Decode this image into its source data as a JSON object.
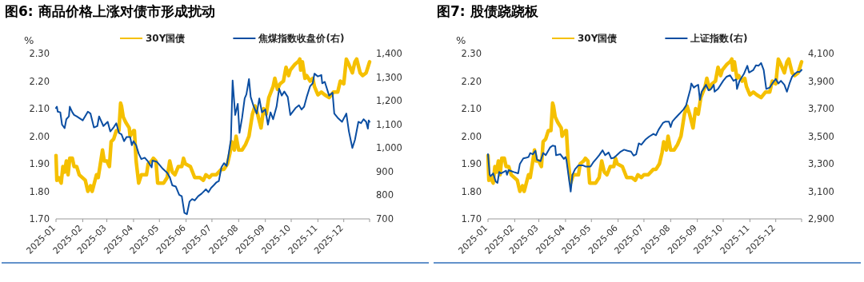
{
  "chart_data": [
    {
      "type": "line",
      "title": "图6: 商品价格上涨对债市形成扰动",
      "ylabel": "%",
      "legend": "top",
      "xlim": [
        "2025-01-01",
        "2025-12-31"
      ],
      "xticks": [
        "2025-01",
        "2025-02",
        "2025-03",
        "2025-04",
        "2025-05",
        "2025-06",
        "2025-07",
        "2025-08",
        "2025-09",
        "2025-10",
        "2025-11",
        "2025-12"
      ],
      "ylim": [
        1.7,
        2.3
      ],
      "yticks": [
        {
          "value": 1.7,
          "label": "1.70"
        },
        {
          "value": 1.8,
          "label": "1.80"
        },
        {
          "value": 1.9,
          "label": "1.90"
        },
        {
          "value": 2.0,
          "label": "2.00"
        },
        {
          "value": 2.1,
          "label": "2.10"
        },
        {
          "value": 2.2,
          "label": "2.20"
        },
        {
          "value": 2.3,
          "label": "2.30"
        }
      ],
      "y2lim": [
        700,
        1400
      ],
      "y2ticks": [
        700,
        800,
        900,
        {
          "value": 1000,
          "label": "1,000"
        },
        {
          "value": 1100,
          "label": "1,100"
        },
        {
          "value": 1200,
          "label": "1,200"
        },
        {
          "value": 1300,
          "label": "1,300"
        },
        {
          "value": 1400,
          "label": "1,400"
        }
      ],
      "series": [
        {
          "name": "30Y国债",
          "color": "#f5c000",
          "x": [
            "2025-01-01",
            "2025-01-02",
            "2025-01-04",
            "2025-01-07",
            "2025-01-09",
            "2025-01-11",
            "2025-01-13",
            "2025-01-15",
            "2025-01-17",
            "2025-01-20",
            "2025-01-22",
            "2025-01-25",
            "2025-01-28",
            "2025-02-04",
            "2025-02-07",
            "2025-02-10",
            "2025-02-12",
            "2025-02-17",
            "2025-02-19",
            "2025-02-22",
            "2025-02-24",
            "2025-02-26",
            "2025-03-01",
            "2025-03-04",
            "2025-03-06",
            "2025-03-09",
            "2025-03-12",
            "2025-03-15",
            "2025-03-17",
            "2025-03-18",
            "2025-03-20",
            "2025-03-23",
            "2025-03-27",
            "2025-03-28",
            "2025-04-01",
            "2025-04-02",
            "2025-04-04",
            "2025-04-07",
            "2025-04-10",
            "2025-04-16",
            "2025-04-18",
            "2025-04-22",
            "2025-04-24",
            "2025-04-27",
            "2025-04-29",
            "2025-05-06",
            "2025-05-10",
            "2025-05-13",
            "2025-05-16",
            "2025-05-19",
            "2025-05-23",
            "2025-05-27",
            "2025-05-29",
            "2025-05-31",
            "2025-06-06",
            "2025-06-11",
            "2025-06-17",
            "2025-06-21",
            "2025-06-24",
            "2025-06-28",
            "2025-07-01",
            "2025-07-06",
            "2025-07-12",
            "2025-07-15",
            "2025-07-19",
            "2025-07-22",
            "2025-07-24",
            "2025-07-27",
            "2025-07-29",
            "2025-08-01",
            "2025-08-05",
            "2025-08-09",
            "2025-08-13",
            "2025-08-17",
            "2025-08-20",
            "2025-08-23",
            "2025-08-27",
            "2025-08-30",
            "2025-09-02",
            "2025-09-05",
            "2025-09-10",
            "2025-09-12",
            "2025-09-15",
            "2025-09-18",
            "2025-09-22",
            "2025-09-25",
            "2025-09-28",
            "2025-09-30",
            "2025-10-05",
            "2025-10-09",
            "2025-10-11",
            "2025-10-12",
            "2025-10-14",
            "2025-10-17",
            "2025-10-19",
            "2025-10-23",
            "2025-10-26",
            "2025-10-28",
            "2025-11-01",
            "2025-11-05",
            "2025-11-09",
            "2025-11-14",
            "2025-11-19",
            "2025-11-24",
            "2025-11-27",
            "2025-12-01",
            "2025-12-04",
            "2025-12-07",
            "2025-12-11",
            "2025-12-14",
            "2025-12-16",
            "2025-12-20",
            "2025-12-23",
            "2025-12-27",
            "2025-12-29",
            "2025-12-31"
          ],
          "values": [
            1.93,
            1.84,
            1.85,
            1.83,
            1.89,
            1.87,
            1.91,
            1.86,
            1.92,
            1.92,
            1.89,
            1.89,
            1.86,
            1.84,
            1.8,
            1.82,
            1.8,
            1.86,
            1.85,
            1.91,
            1.95,
            1.91,
            1.91,
            1.89,
            1.98,
            1.99,
            2.02,
            2.02,
            2.12,
            2.11,
            2.07,
            2.05,
            2.03,
            2.0,
            2.02,
            2.02,
            1.91,
            1.83,
            1.86,
            1.86,
            1.9,
            1.91,
            1.92,
            1.91,
            1.83,
            1.83,
            1.85,
            1.91,
            1.87,
            1.86,
            1.89,
            1.89,
            1.92,
            1.9,
            1.89,
            1.85,
            1.85,
            1.84,
            1.86,
            1.85,
            1.86,
            1.86,
            1.88,
            1.88,
            1.9,
            1.94,
            1.98,
            1.95,
            2.0,
            1.95,
            1.95,
            1.97,
            2.0,
            2.08,
            2.11,
            2.08,
            2.03,
            2.1,
            2.08,
            2.14,
            2.18,
            2.21,
            2.17,
            2.19,
            2.2,
            2.25,
            2.22,
            2.24,
            2.26,
            2.27,
            2.28,
            2.24,
            2.27,
            2.21,
            2.22,
            2.2,
            2.21,
            2.18,
            2.15,
            2.16,
            2.15,
            2.14,
            2.16,
            2.16,
            2.2,
            2.19,
            2.28,
            2.26,
            2.23,
            2.27,
            2.28,
            2.23,
            2.22,
            2.23,
            2.25,
            2.27
          ]
        },
        {
          "name": "焦煤指数收盘价(右)",
          "color": "#0b4ea2",
          "axis": "y2",
          "x": [
            "2025-01-01",
            "2025-01-02",
            "2025-01-03",
            "2025-01-06",
            "2025-01-08",
            "2025-01-11",
            "2025-01-13",
            "2025-01-16",
            "2025-01-17",
            "2025-01-20",
            "2025-01-22",
            "2025-01-25",
            "2025-02-01",
            "2025-02-07",
            "2025-02-10",
            "2025-02-14",
            "2025-02-18",
            "2025-02-20",
            "2025-02-25",
            "2025-03-02",
            "2025-03-05",
            "2025-03-09",
            "2025-03-12",
            "2025-03-15",
            "2025-03-18",
            "2025-03-21",
            "2025-03-24",
            "2025-03-28",
            "2025-03-30",
            "2025-04-01",
            "2025-04-04",
            "2025-04-07",
            "2025-04-10",
            "2025-04-14",
            "2025-04-18",
            "2025-04-22",
            "2025-04-23",
            "2025-04-28",
            "2025-05-05",
            "2025-05-10",
            "2025-05-13",
            "2025-05-16",
            "2025-05-20",
            "2025-05-24",
            "2025-05-27",
            "2025-05-30",
            "2025-06-02",
            "2025-06-05",
            "2025-06-08",
            "2025-06-11",
            "2025-06-15",
            "2025-06-19",
            "2025-06-24",
            "2025-06-27",
            "2025-06-30",
            "2025-07-03",
            "2025-07-06",
            "2025-07-09",
            "2025-07-12",
            "2025-07-15",
            "2025-07-18",
            "2025-07-20",
            "2025-07-23",
            "2025-07-25",
            "2025-07-28",
            "2025-07-31",
            "2025-08-02",
            "2025-08-05",
            "2025-08-08",
            "2025-08-10",
            "2025-08-13",
            "2025-08-15",
            "2025-08-18",
            "2025-08-22",
            "2025-08-25",
            "2025-08-28",
            "2025-09-01",
            "2025-09-04",
            "2025-09-07",
            "2025-09-10",
            "2025-09-14",
            "2025-09-17",
            "2025-09-20",
            "2025-09-23",
            "2025-09-27",
            "2025-09-30",
            "2025-10-06",
            "2025-10-10",
            "2025-10-13",
            "2025-10-16",
            "2025-10-19",
            "2025-10-23",
            "2025-10-26",
            "2025-10-28",
            "2025-11-01",
            "2025-11-05",
            "2025-11-06",
            "2025-11-09",
            "2025-11-14",
            "2025-11-18",
            "2025-11-20",
            "2025-11-24",
            "2025-11-29",
            "2025-12-04",
            "2025-12-07",
            "2025-12-11",
            "2025-12-14",
            "2025-12-18",
            "2025-12-21",
            "2025-12-24",
            "2025-12-27",
            "2025-12-29",
            "2025-12-30",
            "2025-12-31"
          ],
          "values": [
            1169,
            1175,
            1154,
            1151,
            1099,
            1084,
            1122,
            1134,
            1175,
            1151,
            1140,
            1134,
            1117,
            1154,
            1146,
            1087,
            1093,
            1134,
            1093,
            1111,
            1070,
            1088,
            1105,
            1064,
            1058,
            1029,
            1047,
            1047,
            1012,
            1029,
            1012,
            976,
            953,
            959,
            942,
            918,
            947,
            942,
            912,
            895,
            877,
            842,
            837,
            802,
            796,
            726,
            720,
            773,
            784,
            778,
            796,
            807,
            825,
            813,
            831,
            842,
            854,
            860,
            918,
            936,
            924,
            965,
            1035,
            1286,
            1140,
            1187,
            1064,
            1128,
            1210,
            1227,
            1292,
            1216,
            1181,
            1146,
            1210,
            1151,
            1163,
            1099,
            1151,
            1122,
            1175,
            1251,
            1222,
            1239,
            1216,
            1140,
            1169,
            1181,
            1163,
            1175,
            1216,
            1262,
            1274,
            1315,
            1303,
            1309,
            1274,
            1280,
            1222,
            1234,
            1146,
            1128,
            1111,
            1146,
            1070,
            1000,
            1035,
            1111,
            1105,
            1122,
            1111,
            1082,
            1117,
            1111
          ]
        }
      ]
    },
    {
      "type": "line",
      "title": "图7: 股债跷跷板",
      "ylabel": "%",
      "legend": "top",
      "xlim": [
        "2025-01-01",
        "2025-12-31"
      ],
      "xticks": [
        "2025-01",
        "2025-02",
        "2025-03",
        "2025-04",
        "2025-05",
        "2025-06",
        "2025-07",
        "2025-08",
        "2025-09",
        "2025-10",
        "2025-11",
        "2025-12"
      ],
      "ylim": [
        1.7,
        2.3
      ],
      "yticks": [
        {
          "value": 1.7,
          "label": "1.70"
        },
        {
          "value": 1.8,
          "label": "1.80"
        },
        {
          "value": 1.9,
          "label": "1.90"
        },
        {
          "value": 2.0,
          "label": "2.00"
        },
        {
          "value": 2.1,
          "label": "2.10"
        },
        {
          "value": 2.2,
          "label": "2.20"
        },
        {
          "value": 2.3,
          "label": "2.30"
        }
      ],
      "y2lim": [
        2900,
        4100
      ],
      "y2ticks": [
        {
          "value": 2900,
          "label": "2,900"
        },
        {
          "value": 3100,
          "label": "3,100"
        },
        {
          "value": 3300,
          "label": "3,300"
        },
        {
          "value": 3500,
          "label": "3,500"
        },
        {
          "value": 3700,
          "label": "3,700"
        },
        {
          "value": 3900,
          "label": "3,900"
        },
        {
          "value": 4100,
          "label": "4,100"
        }
      ],
      "series": [
        {
          "name": "30Y国债",
          "color": "#f5c000",
          "x": [
            "2025-01-01",
            "2025-01-02",
            "2025-01-04",
            "2025-01-07",
            "2025-01-09",
            "2025-01-11",
            "2025-01-13",
            "2025-01-15",
            "2025-01-17",
            "2025-01-20",
            "2025-01-22",
            "2025-01-25",
            "2025-01-28",
            "2025-02-04",
            "2025-02-07",
            "2025-02-10",
            "2025-02-12",
            "2025-02-17",
            "2025-02-19",
            "2025-02-22",
            "2025-02-24",
            "2025-02-26",
            "2025-03-01",
            "2025-03-04",
            "2025-03-06",
            "2025-03-09",
            "2025-03-12",
            "2025-03-15",
            "2025-03-17",
            "2025-03-18",
            "2025-03-20",
            "2025-03-23",
            "2025-03-27",
            "2025-03-28",
            "2025-04-01",
            "2025-04-02",
            "2025-04-04",
            "2025-04-07",
            "2025-04-10",
            "2025-04-16",
            "2025-04-18",
            "2025-04-22",
            "2025-04-24",
            "2025-04-27",
            "2025-04-29",
            "2025-05-06",
            "2025-05-10",
            "2025-05-13",
            "2025-05-16",
            "2025-05-19",
            "2025-05-23",
            "2025-05-27",
            "2025-05-29",
            "2025-05-31",
            "2025-06-06",
            "2025-06-11",
            "2025-06-17",
            "2025-06-21",
            "2025-06-24",
            "2025-06-28",
            "2025-07-01",
            "2025-07-06",
            "2025-07-12",
            "2025-07-15",
            "2025-07-19",
            "2025-07-22",
            "2025-07-24",
            "2025-07-27",
            "2025-07-29",
            "2025-08-01",
            "2025-08-05",
            "2025-08-09",
            "2025-08-13",
            "2025-08-17",
            "2025-08-20",
            "2025-08-23",
            "2025-08-27",
            "2025-08-30",
            "2025-09-02",
            "2025-09-05",
            "2025-09-10",
            "2025-09-12",
            "2025-09-15",
            "2025-09-18",
            "2025-09-22",
            "2025-09-25",
            "2025-09-28",
            "2025-09-30",
            "2025-10-05",
            "2025-10-09",
            "2025-10-11",
            "2025-10-12",
            "2025-10-14",
            "2025-10-17",
            "2025-10-19",
            "2025-10-23",
            "2025-10-26",
            "2025-10-28",
            "2025-11-01",
            "2025-11-05",
            "2025-11-09",
            "2025-11-14",
            "2025-11-19",
            "2025-11-24",
            "2025-11-27",
            "2025-12-01",
            "2025-12-04",
            "2025-12-07",
            "2025-12-11",
            "2025-12-14",
            "2025-12-16",
            "2025-12-20",
            "2025-12-23",
            "2025-12-27",
            "2025-12-29",
            "2025-12-31"
          ],
          "values": [
            1.93,
            1.84,
            1.85,
            1.83,
            1.89,
            1.87,
            1.91,
            1.86,
            1.92,
            1.92,
            1.89,
            1.89,
            1.86,
            1.84,
            1.8,
            1.82,
            1.8,
            1.86,
            1.85,
            1.91,
            1.95,
            1.91,
            1.91,
            1.89,
            1.98,
            1.99,
            2.02,
            2.02,
            2.12,
            2.11,
            2.07,
            2.05,
            2.03,
            2.0,
            2.02,
            2.02,
            1.91,
            1.83,
            1.86,
            1.86,
            1.9,
            1.91,
            1.92,
            1.91,
            1.83,
            1.83,
            1.85,
            1.91,
            1.87,
            1.86,
            1.89,
            1.89,
            1.92,
            1.9,
            1.89,
            1.85,
            1.85,
            1.84,
            1.86,
            1.85,
            1.86,
            1.86,
            1.88,
            1.88,
            1.9,
            1.94,
            1.98,
            1.95,
            2.0,
            1.95,
            1.95,
            1.97,
            2.0,
            2.08,
            2.11,
            2.08,
            2.03,
            2.1,
            2.08,
            2.14,
            2.18,
            2.21,
            2.17,
            2.19,
            2.2,
            2.25,
            2.22,
            2.24,
            2.26,
            2.27,
            2.28,
            2.24,
            2.27,
            2.21,
            2.22,
            2.2,
            2.21,
            2.18,
            2.15,
            2.16,
            2.15,
            2.14,
            2.16,
            2.16,
            2.2,
            2.19,
            2.28,
            2.26,
            2.23,
            2.27,
            2.28,
            2.23,
            2.22,
            2.23,
            2.25,
            2.27
          ]
        },
        {
          "name": "上证指数(右)",
          "color": "#0b4ea2",
          "axis": "y2",
          "x": [
            "2025-01-01",
            "2025-01-03",
            "2025-01-04",
            "2025-01-07",
            "2025-01-10",
            "2025-01-12",
            "2025-01-14",
            "2025-01-16",
            "2025-01-22",
            "2025-01-23",
            "2025-01-25",
            "2025-01-31",
            "2025-02-05",
            "2025-02-07",
            "2025-02-11",
            "2025-02-14",
            "2025-02-17",
            "2025-02-19",
            "2025-02-22",
            "2025-02-25",
            "2025-02-27",
            "2025-03-03",
            "2025-03-06",
            "2025-03-09",
            "2025-03-14",
            "2025-03-17",
            "2025-03-20",
            "2025-03-21",
            "2025-03-26",
            "2025-03-30",
            "2025-04-01",
            "2025-04-02",
            "2025-04-07",
            "2025-04-09",
            "2025-04-12",
            "2025-04-16",
            "2025-04-21",
            "2025-04-24",
            "2025-04-30",
            "2025-05-03",
            "2025-05-07",
            "2025-05-10",
            "2025-05-14",
            "2025-05-17",
            "2025-05-21",
            "2025-05-24",
            "2025-05-27",
            "2025-05-30",
            "2025-06-04",
            "2025-06-08",
            "2025-06-12",
            "2025-06-16",
            "2025-06-19",
            "2025-06-22",
            "2025-06-25",
            "2025-06-28",
            "2025-07-03",
            "2025-07-07",
            "2025-07-12",
            "2025-07-15",
            "2025-07-18",
            "2025-07-23",
            "2025-07-26",
            "2025-07-30",
            "2025-08-01",
            "2025-08-03",
            "2025-08-07",
            "2025-08-10",
            "2025-08-13",
            "2025-08-16",
            "2025-08-19",
            "2025-08-21",
            "2025-08-24",
            "2025-08-25",
            "2025-08-28",
            "2025-08-30",
            "2025-09-02",
            "2025-09-04",
            "2025-09-06",
            "2025-09-09",
            "2025-09-11",
            "2025-09-14",
            "2025-09-17",
            "2025-09-20",
            "2025-09-21",
            "2025-09-25",
            "2025-10-01",
            "2025-10-05",
            "2025-10-09",
            "2025-10-13",
            "2025-10-16",
            "2025-10-17",
            "2025-10-20",
            "2025-10-25",
            "2025-10-29",
            "2025-10-31",
            "2025-11-05",
            "2025-11-08",
            "2025-11-11",
            "2025-11-14",
            "2025-11-17",
            "2025-11-20",
            "2025-11-24",
            "2025-11-27",
            "2025-12-01",
            "2025-12-04",
            "2025-12-07",
            "2025-12-11",
            "2025-12-14",
            "2025-12-17",
            "2025-12-20",
            "2025-12-23",
            "2025-12-26",
            "2025-12-29",
            "2025-12-31"
          ],
          "values": [
            3369,
            3220,
            3210,
            3230,
            3171,
            3161,
            3240,
            3230,
            3250,
            3220,
            3254,
            3240,
            3230,
            3299,
            3339,
            3343,
            3349,
            3378,
            3369,
            3394,
            3329,
            3319,
            3378,
            3362,
            3418,
            3432,
            3428,
            3362,
            3369,
            3335,
            3349,
            3329,
            3098,
            3220,
            3260,
            3289,
            3289,
            3280,
            3280,
            3309,
            3339,
            3362,
            3398,
            3362,
            3382,
            3339,
            3343,
            3359,
            3388,
            3402,
            3394,
            3388,
            3359,
            3369,
            3448,
            3438,
            3477,
            3497,
            3517,
            3507,
            3547,
            3596,
            3606,
            3606,
            3567,
            3606,
            3635,
            3655,
            3675,
            3695,
            3724,
            3774,
            3843,
            3883,
            3853,
            3863,
            3873,
            3764,
            3823,
            3853,
            3873,
            3833,
            3843,
            3873,
            3823,
            3843,
            3902,
            3932,
            3942,
            3902,
            3912,
            3843,
            3902,
            3952,
            4011,
            3962,
            3981,
            4015,
            4011,
            4031,
            3981,
            3843,
            3853,
            3883,
            3916,
            3883,
            3902,
            3873,
            3823,
            3883,
            3932,
            3952,
            3967,
            3967,
            3981
          ]
        }
      ]
    }
  ]
}
